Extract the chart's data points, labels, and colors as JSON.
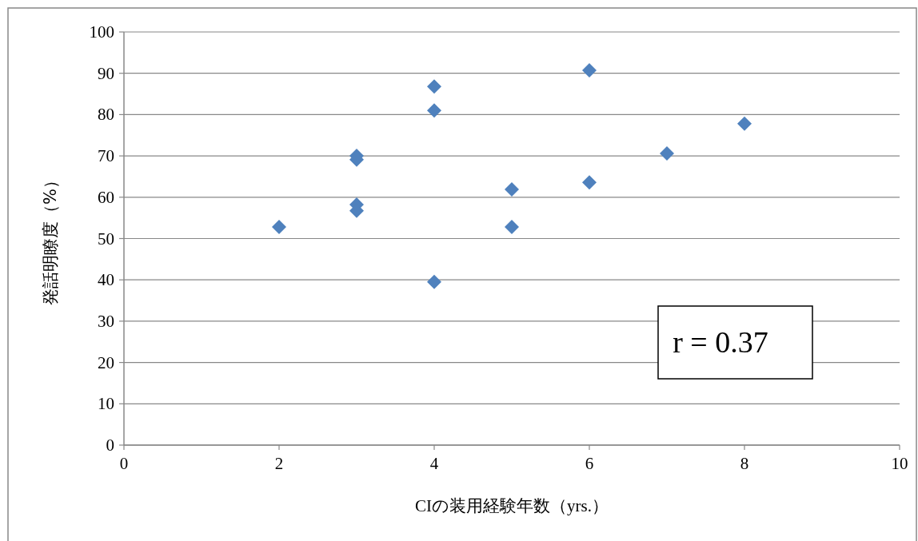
{
  "chart_data": {
    "type": "scatter",
    "xlabel": "CIの装用経験年数（yrs.）",
    "ylabel": "発話明瞭度（%）",
    "x": [
      2,
      3,
      3,
      3,
      3,
      4,
      4,
      4,
      5,
      5,
      6,
      6,
      7,
      8
    ],
    "series": [
      {
        "color": "#4f81bd",
        "values": [
          52.8,
          70.0,
          69.1,
          58.2,
          56.7,
          86.8,
          81.0,
          39.5,
          61.9,
          52.8,
          90.7,
          63.6,
          70.6,
          77.8
        ]
      }
    ],
    "xlim": [
      0,
      10
    ],
    "xticks": [
      0,
      2,
      4,
      6,
      8,
      10
    ],
    "ylim": [
      0,
      100
    ],
    "yticks": [
      0,
      10,
      20,
      30,
      40,
      50,
      60,
      70,
      80,
      90,
      100
    ],
    "grid": "y",
    "marker": "diamond",
    "annotations": [
      "r = 0.37"
    ]
  }
}
